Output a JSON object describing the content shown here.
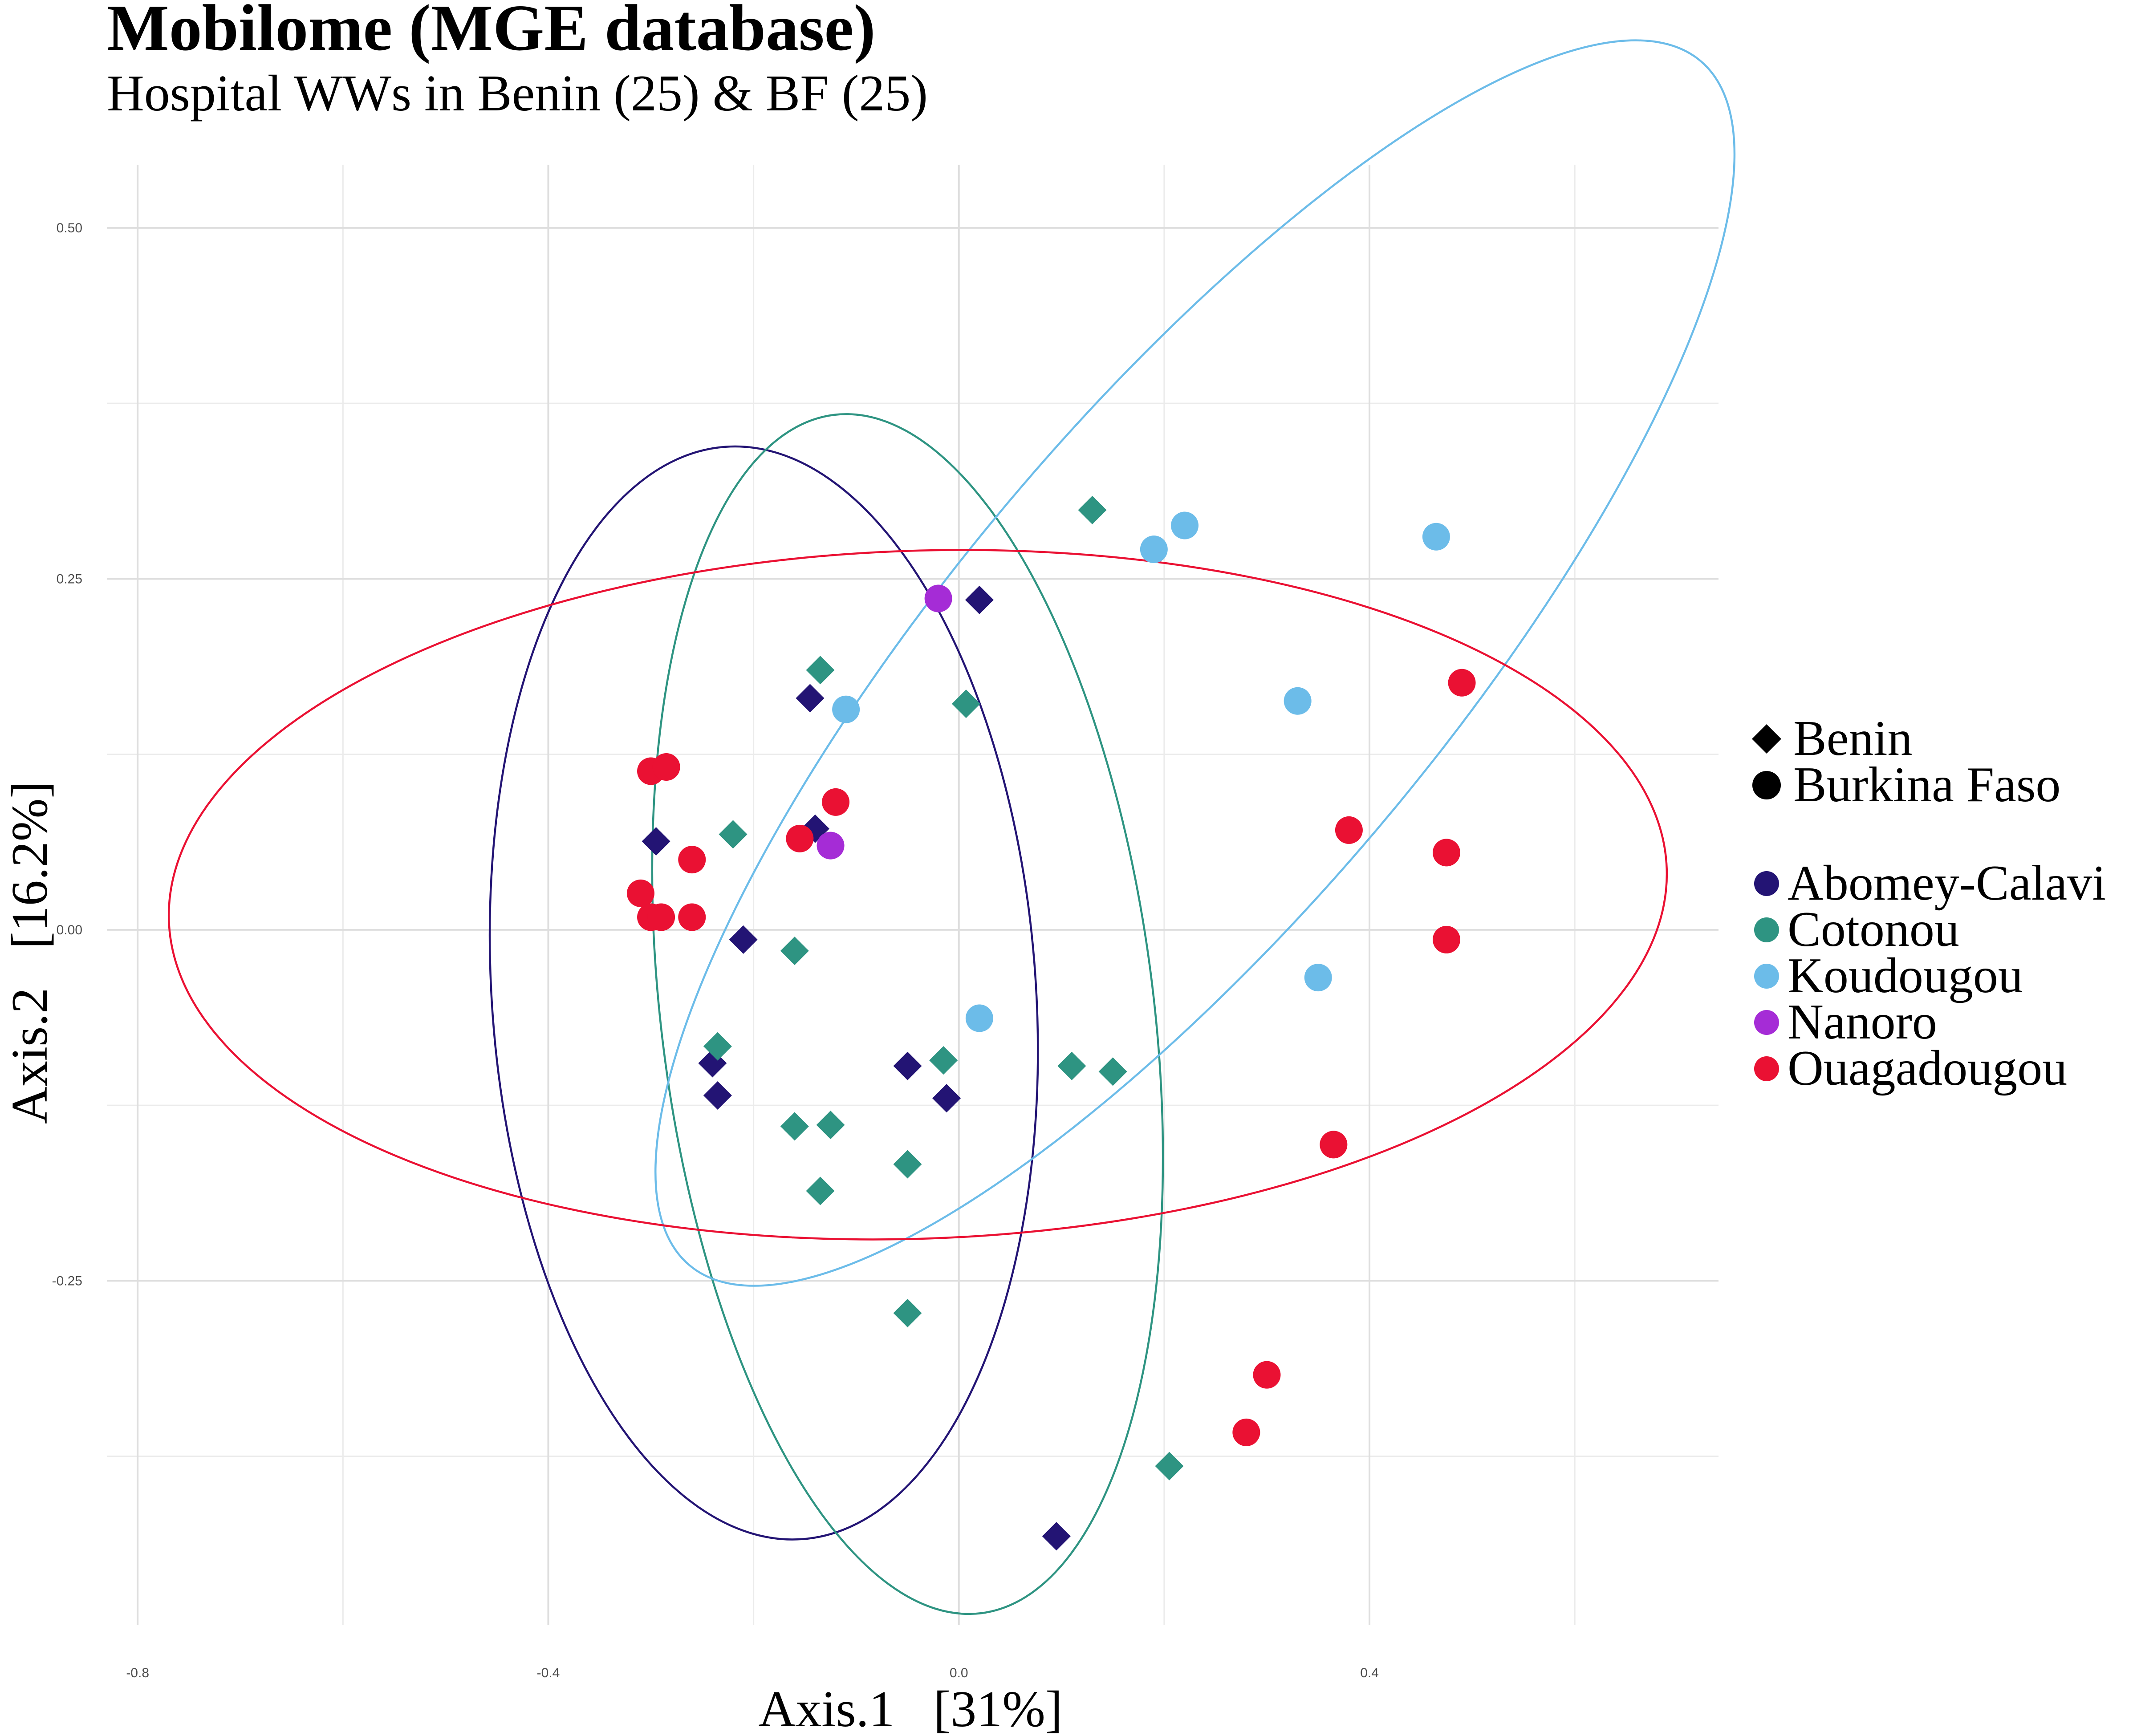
{
  "chart_data": {
    "type": "scatter",
    "title": "Mobilome (MGE database)",
    "subtitle": "Hospital WWs in Benin (25) & BF (25)",
    "xlabel": "Axis.1   [31%]",
    "ylabel": "Axis.2   [16.2%]",
    "xlim": [
      -0.83,
      0.74
    ],
    "ylim": [
      -0.495,
      0.545
    ],
    "x_ticks": [
      {
        "value": -0.8,
        "label": "-0.8"
      },
      {
        "value": -0.4,
        "label": "-0.4"
      },
      {
        "value": 0.0,
        "label": "0.0"
      },
      {
        "value": 0.4,
        "label": "0.4"
      }
    ],
    "x_minor_grid": [
      -0.6,
      -0.2,
      0.2,
      0.6
    ],
    "y_ticks": [
      {
        "value": -0.25,
        "label": "-0.25"
      },
      {
        "value": 0.0,
        "label": "0.00"
      },
      {
        "value": 0.25,
        "label": "0.25"
      },
      {
        "value": 0.5,
        "label": "0.50"
      }
    ],
    "y_minor_grid": [
      -0.375,
      -0.125,
      0.125,
      0.375
    ],
    "grid": true,
    "legend_position": "right",
    "shape_legend": [
      {
        "label": "Benin",
        "shape": "diamond"
      },
      {
        "label": "Burkina Faso",
        "shape": "circle"
      }
    ],
    "color_legend": [
      {
        "label": "Abomey-Calavi",
        "color": "#231474"
      },
      {
        "label": "Cotonou",
        "color": "#2E9482"
      },
      {
        "label": "Koudougou",
        "color": "#6CBCE9"
      },
      {
        "label": "Nanoro",
        "color": "#A52CD6"
      },
      {
        "label": "Ouagadougou",
        "color": "#EA1133"
      }
    ],
    "series": [
      {
        "name": "Abomey-Calavi",
        "shape": "diamond",
        "color": "#231474",
        "points": [
          [
            0.02,
            0.235
          ],
          [
            -0.145,
            0.165
          ],
          [
            -0.295,
            0.063
          ],
          [
            -0.14,
            0.072
          ],
          [
            -0.21,
            -0.007
          ],
          [
            -0.24,
            -0.095
          ],
          [
            -0.235,
            -0.118
          ],
          [
            -0.05,
            -0.097
          ],
          [
            -0.012,
            -0.12
          ],
          [
            0.095,
            -0.432
          ]
        ]
      },
      {
        "name": "Cotonou",
        "shape": "diamond",
        "color": "#2E9482",
        "points": [
          [
            0.13,
            0.299
          ],
          [
            -0.135,
            0.185
          ],
          [
            0.007,
            0.161
          ],
          [
            -0.22,
            0.068
          ],
          [
            -0.16,
            -0.015
          ],
          [
            -0.235,
            -0.083
          ],
          [
            -0.015,
            -0.093
          ],
          [
            0.11,
            -0.097
          ],
          [
            0.15,
            -0.101
          ],
          [
            -0.16,
            -0.14
          ],
          [
            -0.125,
            -0.139
          ],
          [
            -0.135,
            -0.186
          ],
          [
            -0.05,
            -0.167
          ],
          [
            -0.05,
            -0.273
          ],
          [
            0.205,
            -0.382
          ]
        ]
      },
      {
        "name": "Koudougou",
        "shape": "circle",
        "color": "#6CBCE9",
        "points": [
          [
            0.22,
            0.288
          ],
          [
            0.19,
            0.271
          ],
          [
            0.465,
            0.28
          ],
          [
            -0.11,
            0.157
          ],
          [
            0.33,
            0.163
          ],
          [
            0.35,
            -0.034
          ],
          [
            0.02,
            -0.063
          ]
        ]
      },
      {
        "name": "Nanoro",
        "shape": "circle",
        "color": "#A52CD6",
        "points": [
          [
            -0.02,
            0.236
          ],
          [
            -0.125,
            0.06
          ]
        ]
      },
      {
        "name": "Ouagadougou",
        "shape": "circle",
        "color": "#EA1133",
        "points": [
          [
            0.49,
            0.176
          ],
          [
            -0.3,
            0.113
          ],
          [
            -0.285,
            0.116
          ],
          [
            -0.12,
            0.091
          ],
          [
            -0.155,
            0.065
          ],
          [
            0.38,
            0.071
          ],
          [
            0.475,
            0.055
          ],
          [
            -0.26,
            0.05
          ],
          [
            -0.31,
            0.026
          ],
          [
            -0.3,
            0.009
          ],
          [
            -0.29,
            0.009
          ],
          [
            -0.26,
            0.009
          ],
          [
            0.475,
            -0.007
          ],
          [
            0.365,
            -0.153
          ],
          [
            0.3,
            -0.317
          ],
          [
            0.28,
            -0.358
          ]
        ]
      }
    ],
    "ellipses": [
      {
        "name": "Abomey-Calavi",
        "color": "#231474",
        "center": [
          -0.19,
          -0.045
        ],
        "radii": [
          0.265,
          0.39
        ],
        "angle": -4
      },
      {
        "name": "Cotonou",
        "color": "#2E9482",
        "center": [
          -0.05,
          -0.06
        ],
        "radii": [
          0.24,
          0.43
        ],
        "angle": -7
      },
      {
        "name": "Koudougou",
        "color": "#6CBCE9",
        "center": [
          0.23,
          0.19
        ],
        "radii": [
          0.24,
          0.56
        ],
        "angle": 40
      },
      {
        "name": "Ouagadougou",
        "color": "#EA1133",
        "center": [
          -0.04,
          0.025
        ],
        "radii": [
          0.73,
          0.245
        ],
        "angle": -2
      }
    ]
  }
}
